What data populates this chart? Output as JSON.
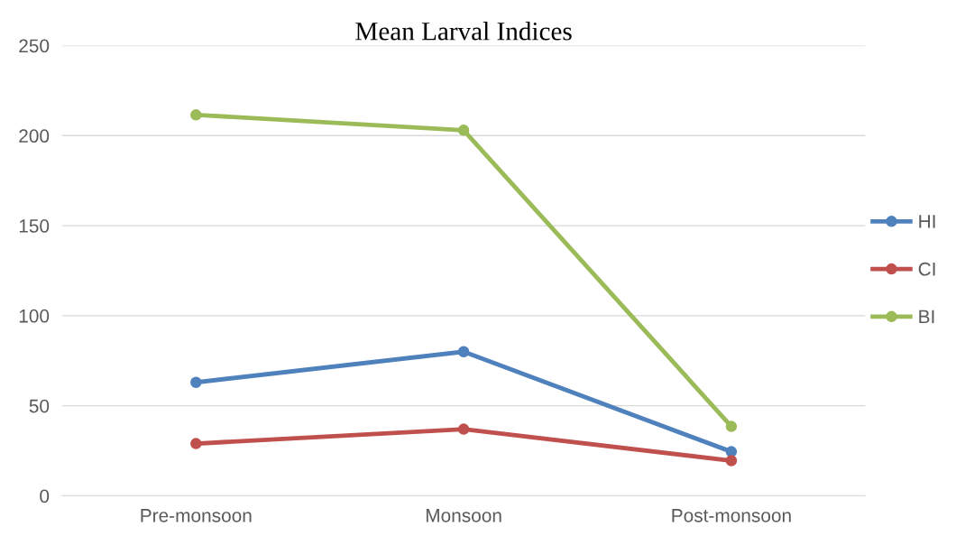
{
  "chart_data": {
    "type": "line",
    "title": "Mean Larval Indices",
    "categories": [
      "Pre-monsoon",
      "Monsoon",
      "Post-monsoon"
    ],
    "series": [
      {
        "name": "HI",
        "color": "#4f81bd",
        "values": [
          63,
          80,
          24.5
        ]
      },
      {
        "name": "CI",
        "color": "#c0504d",
        "values": [
          29,
          37,
          19.5
        ]
      },
      {
        "name": "BI",
        "color": "#9bbb59",
        "values": [
          211.5,
          203,
          38.5
        ]
      }
    ],
    "ylim": [
      0,
      250
    ],
    "yticks": [
      0,
      50,
      100,
      150,
      200,
      250
    ],
    "grid": "y",
    "legend": "right",
    "marker": "circle",
    "line_style": "solid"
  }
}
